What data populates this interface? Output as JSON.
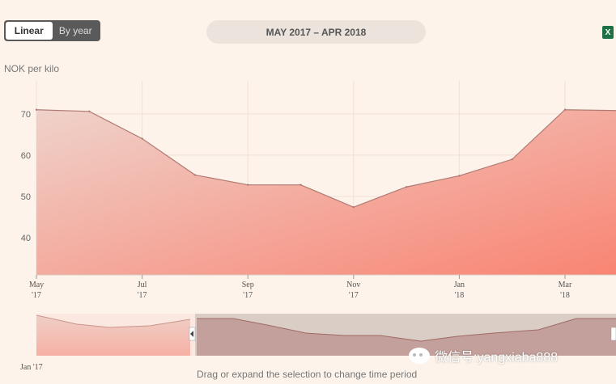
{
  "toggle": {
    "linear_label": "Linear",
    "by_year_label": "By year"
  },
  "range_label": "MAY 2017 – APR 2018",
  "export": {
    "icon": "excel-icon",
    "glyph": "X"
  },
  "ylabel": "NOK per kilo",
  "hint": "Drag or expand the selection to change time period",
  "watermark": "微信号:yangxiaba888",
  "navigator": {
    "start_label": "Jan '17"
  },
  "chart_data": {
    "type": "area",
    "title": "",
    "xlabel": "",
    "ylabel": "NOK per kilo",
    "x": [
      "May '17",
      "Jun '17",
      "Jul '17",
      "Aug '17",
      "Sep '17",
      "Oct '17",
      "Nov '17",
      "Dec '17",
      "Jan '18",
      "Feb '18",
      "Mar '18",
      "Apr '18"
    ],
    "values": [
      71.0,
      70.6,
      64.0,
      55.2,
      52.8,
      52.8,
      47.4,
      52.3,
      55.0,
      59.0,
      71.0,
      70.8
    ],
    "ylim": [
      31.0,
      78.0
    ],
    "yticks": [
      40,
      50,
      60,
      70
    ],
    "xticks": [
      {
        "label": "May",
        "sub": "'17",
        "index": 0
      },
      {
        "label": "Jul",
        "sub": "'17",
        "index": 2
      },
      {
        "label": "Sep",
        "sub": "'17",
        "index": 4
      },
      {
        "label": "Nov",
        "sub": "'17",
        "index": 6
      },
      {
        "label": "Jan",
        "sub": "'18",
        "index": 8
      },
      {
        "label": "Mar",
        "sub": "'18",
        "index": 10
      }
    ],
    "grid": true,
    "fill_colors": [
      "#efd2ca",
      "#f98473"
    ],
    "line_color": "#b07a72"
  }
}
